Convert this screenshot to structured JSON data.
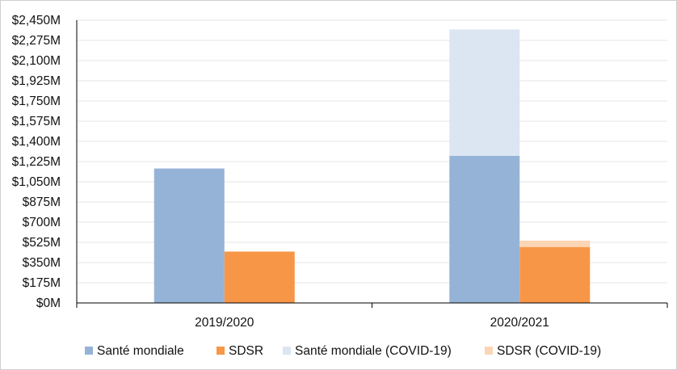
{
  "chart_data": {
    "type": "bar",
    "stacked": true,
    "title": "",
    "xlabel": "",
    "ylabel": "",
    "ylim": [
      0,
      2450
    ],
    "y_ticks": [
      0,
      175,
      350,
      525,
      700,
      875,
      1050,
      1225,
      1400,
      1575,
      1750,
      1925,
      2100,
      2275,
      2450
    ],
    "y_tick_labels": [
      "$0M",
      "$175M",
      "$350M",
      "$525M",
      "$700M",
      "$875M",
      "$1,050M",
      "$1,225M",
      "$1,400M",
      "$1,575M",
      "$1,750M",
      "$1,925M",
      "$2,100M",
      "$2,275M",
      "$2,450M"
    ],
    "grid": true,
    "legend_position": "bottom",
    "categories": [
      "2019/2020",
      "2020/2021"
    ],
    "series": [
      {
        "name": "Santé mondiale",
        "stack": "sante",
        "color": "#95b3d7",
        "values": [
          1165,
          1275
        ]
      },
      {
        "name": "SDSR",
        "stack": "sdsr",
        "color": "#f79646",
        "values": [
          445,
          485
        ]
      },
      {
        "name": "Santé mondiale (COVID-19)",
        "stack": "sante",
        "color": "#dce6f2",
        "values": [
          0,
          1095
        ]
      },
      {
        "name": "SDSR (COVID-19)",
        "stack": "sdsr",
        "color": "#fcd5b5",
        "values": [
          0,
          55
        ]
      }
    ]
  }
}
